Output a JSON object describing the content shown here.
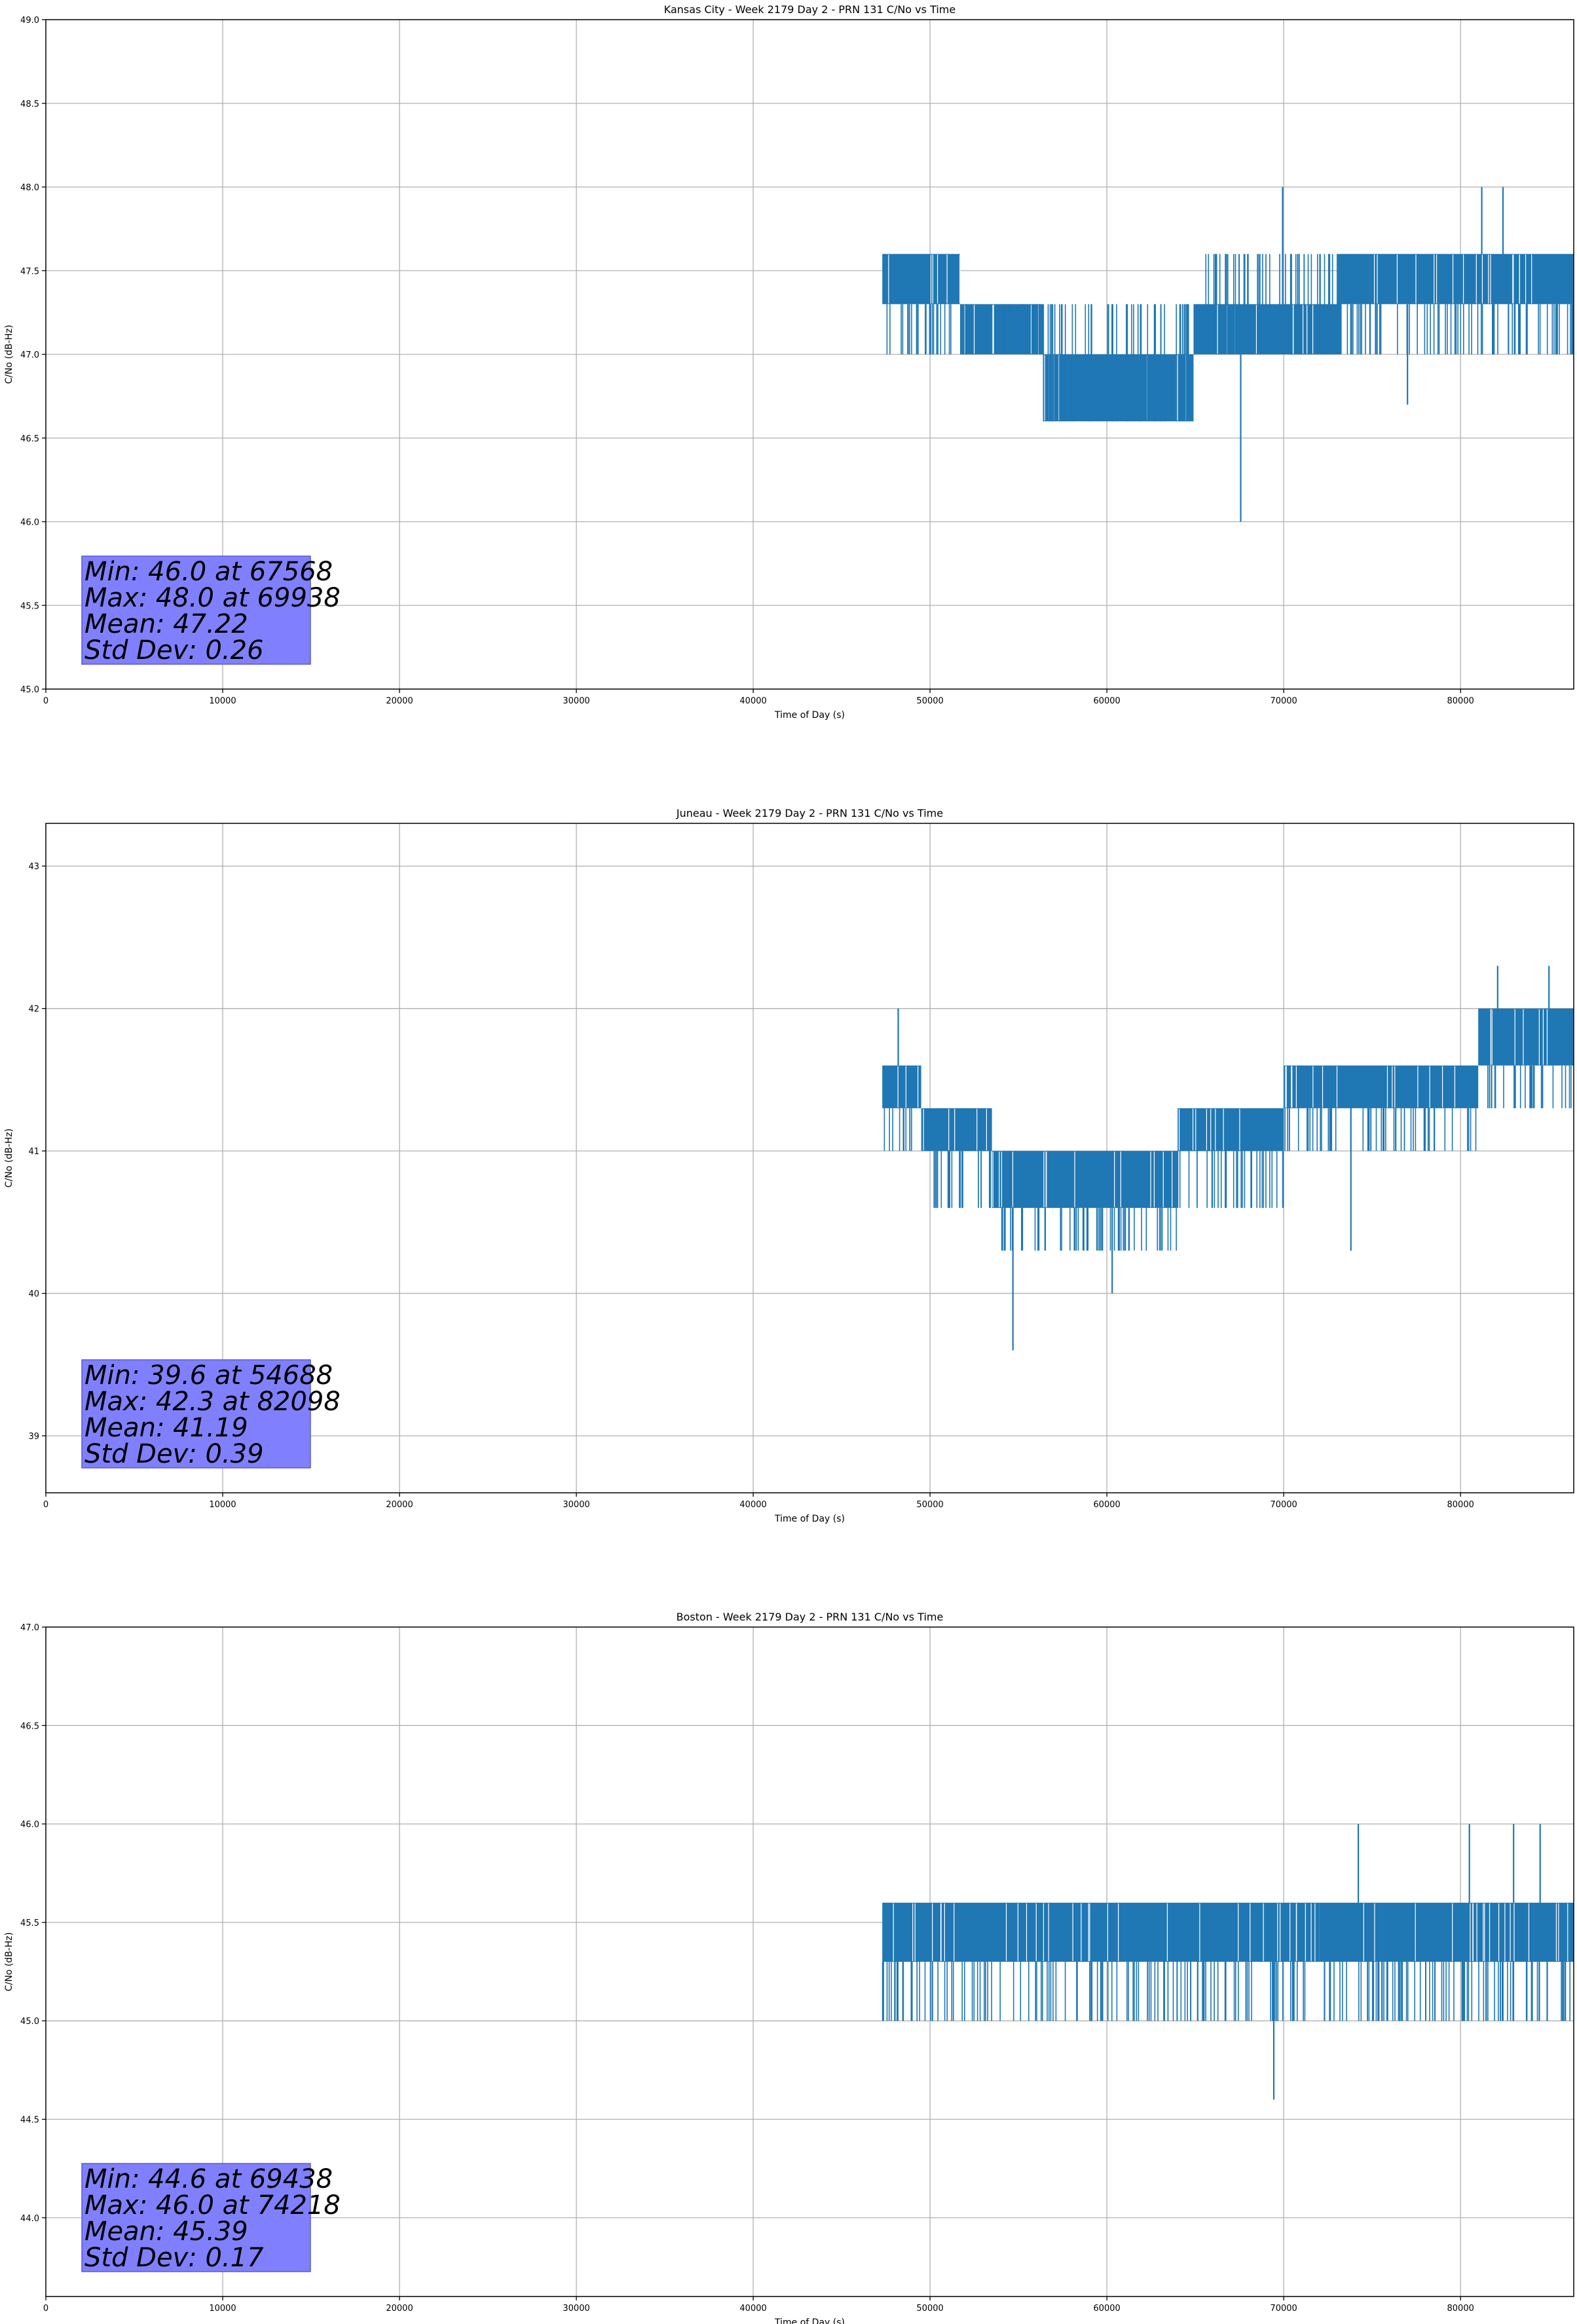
{
  "colors": {
    "series": "#1f77b4",
    "grid": "#b0b0b0",
    "stats_box_fill": "#8080ff",
    "stats_box_edge": "#5a5acf",
    "axis": "#000000"
  },
  "chart_data": [
    {
      "type": "line",
      "title": "Kansas City - Week 2179 Day 2 - PRN 131 C/No vs Time",
      "xlabel": "Time of Day (s)",
      "ylabel": "C/No (dB-Hz)",
      "xlim": [
        0,
        86400
      ],
      "ylim": [
        45.0,
        49.0
      ],
      "xticks": [
        0,
        10000,
        20000,
        30000,
        40000,
        50000,
        60000,
        70000,
        80000
      ],
      "xtick_labels": [
        "0",
        "10000",
        "20000",
        "30000",
        "40000",
        "50000",
        "60000",
        "70000",
        "80000"
      ],
      "yticks": [
        45.0,
        45.5,
        46.0,
        46.5,
        47.0,
        47.5,
        48.0,
        48.5,
        49.0
      ],
      "ytick_labels": [
        "45.0",
        "45.5",
        "46.0",
        "46.5",
        "47.0",
        "47.5",
        "48.0",
        "48.5",
        "49.0"
      ],
      "grid": true,
      "series_segments": [
        {
          "x_start": 47300,
          "x_end": 51700,
          "base": 47.3,
          "alt": 47.6,
          "dip": 47.0
        },
        {
          "x_start": 51700,
          "x_end": 56400,
          "base": 47.0,
          "alt": 47.3,
          "dip": 47.3
        },
        {
          "x_start": 56400,
          "x_end": 64900,
          "base": 46.6,
          "alt": 47.0,
          "dip": 47.3
        },
        {
          "x_start": 64900,
          "x_end": 73200,
          "base": 47.0,
          "alt": 47.3,
          "dip": 47.6
        },
        {
          "x_start": 73200,
          "x_end": 86400,
          "base": 47.3,
          "alt": 47.6,
          "dip": 47.0
        }
      ],
      "spikes": [
        {
          "x": 67568,
          "y": 46.0
        },
        {
          "x": 69938,
          "y": 48.0
        },
        {
          "x": 81200,
          "y": 48.0
        },
        {
          "x": 82400,
          "y": 48.0
        },
        {
          "x": 77000,
          "y": 46.7
        }
      ],
      "stats": [
        "Min: 46.0 at 67568",
        "Max: 48.0 at 69938",
        "Mean: 47.22",
        "Std Dev: 0.26"
      ]
    },
    {
      "type": "line",
      "title": "Juneau - Week 2179 Day 2 - PRN 131 C/No vs Time",
      "xlabel": "Time of Day (s)",
      "ylabel": "C/No (dB-Hz)",
      "xlim": [
        0,
        86400
      ],
      "ylim": [
        38.6,
        43.3
      ],
      "xticks": [
        0,
        10000,
        20000,
        30000,
        40000,
        50000,
        60000,
        70000,
        80000
      ],
      "xtick_labels": [
        "0",
        "10000",
        "20000",
        "30000",
        "40000",
        "50000",
        "60000",
        "70000",
        "80000"
      ],
      "yticks": [
        39,
        40,
        41,
        42,
        43
      ],
      "ytick_labels": [
        "39",
        "40",
        "41",
        "42",
        "43"
      ],
      "grid": true,
      "series_segments": [
        {
          "x_start": 47300,
          "x_end": 49500,
          "base": 41.3,
          "alt": 41.6,
          "dip": 41.0
        },
        {
          "x_start": 49500,
          "x_end": 53500,
          "base": 41.0,
          "alt": 41.3,
          "dip": 40.6
        },
        {
          "x_start": 53500,
          "x_end": 64000,
          "base": 40.6,
          "alt": 41.0,
          "dip": 40.3
        },
        {
          "x_start": 64000,
          "x_end": 70000,
          "base": 41.0,
          "alt": 41.3,
          "dip": 40.6
        },
        {
          "x_start": 70000,
          "x_end": 81000,
          "base": 41.3,
          "alt": 41.6,
          "dip": 41.0
        },
        {
          "x_start": 81000,
          "x_end": 86400,
          "base": 41.6,
          "alt": 42.0,
          "dip": 41.3
        }
      ],
      "spikes": [
        {
          "x": 54688,
          "y": 39.6
        },
        {
          "x": 82098,
          "y": 42.3
        },
        {
          "x": 60300,
          "y": 40.0
        },
        {
          "x": 48200,
          "y": 42.0
        },
        {
          "x": 85000,
          "y": 42.3
        },
        {
          "x": 73800,
          "y": 40.3
        }
      ],
      "stats": [
        "Min: 39.6 at 54688",
        "Max: 42.3 at 82098",
        "Mean: 41.19",
        "Std Dev: 0.39"
      ]
    },
    {
      "type": "line",
      "title": "Boston - Week 2179 Day 2 - PRN 131 C/No vs Time",
      "xlabel": "Time of Day (s)",
      "ylabel": "C/No (dB-Hz)",
      "xlim": [
        0,
        86400
      ],
      "ylim": [
        43.6,
        47.0
      ],
      "xticks": [
        0,
        10000,
        20000,
        30000,
        40000,
        50000,
        60000,
        70000,
        80000
      ],
      "xtick_labels": [
        "0",
        "10000",
        "20000",
        "30000",
        "40000",
        "50000",
        "60000",
        "70000",
        "80000"
      ],
      "yticks": [
        44.0,
        44.5,
        45.0,
        45.5,
        46.0,
        46.5,
        47.0
      ],
      "ytick_labels": [
        "44.0",
        "44.5",
        "45.0",
        "45.5",
        "46.0",
        "46.5",
        "47.0"
      ],
      "grid": true,
      "series_segments": [
        {
          "x_start": 47300,
          "x_end": 56200,
          "base": 45.3,
          "alt": 45.6,
          "dip": 45.0
        },
        {
          "x_start": 56200,
          "x_end": 72000,
          "base": 45.3,
          "alt": 45.6,
          "dip": 45.0
        },
        {
          "x_start": 72000,
          "x_end": 86400,
          "base": 45.3,
          "alt": 45.6,
          "dip": 45.0
        }
      ],
      "spikes": [
        {
          "x": 69438,
          "y": 44.6
        },
        {
          "x": 74218,
          "y": 46.0
        },
        {
          "x": 80500,
          "y": 46.0
        },
        {
          "x": 83000,
          "y": 46.0
        },
        {
          "x": 84500,
          "y": 46.0
        },
        {
          "x": 76500,
          "y": 45.0
        }
      ],
      "stats": [
        "Min: 44.6 at 69438",
        "Max: 46.0 at 74218",
        "Mean: 45.39",
        "Std Dev: 0.17"
      ]
    }
  ]
}
